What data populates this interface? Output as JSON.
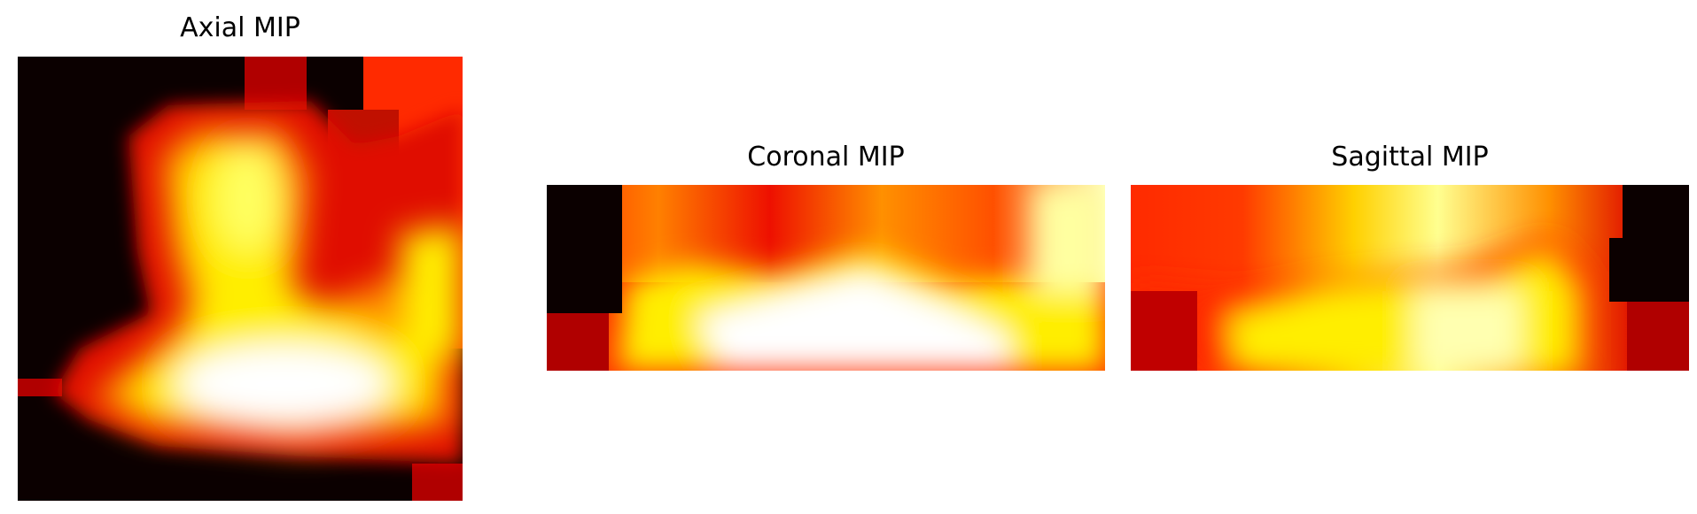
{
  "panels": [
    {
      "title": "Axial MIP"
    },
    {
      "title": "Coronal MIP"
    },
    {
      "title": "Sagittal MIP"
    }
  ],
  "colormap": {
    "name": "hot",
    "stops": [
      "#0b0000",
      "#a00000",
      "#ff2a00",
      "#ff9a00",
      "#ffff00",
      "#ffffff"
    ]
  }
}
